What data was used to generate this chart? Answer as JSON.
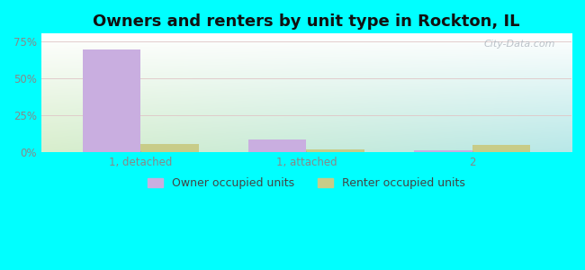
{
  "title": "Owners and renters by unit type in Rockton, IL",
  "categories": [
    "1, detached",
    "1, attached",
    "2"
  ],
  "owner_values": [
    69.0,
    8.5,
    1.0
  ],
  "renter_values": [
    5.5,
    1.5,
    4.5
  ],
  "owner_color": "#c9aee0",
  "renter_color": "#c8cc88",
  "ylim": [
    0,
    80
  ],
  "yticks": [
    0,
    25,
    50,
    75
  ],
  "ytick_labels": [
    "0%",
    "25%",
    "50%",
    "75%"
  ],
  "bar_width": 0.35,
  "bg_top": "#ffffff",
  "bg_bottom": "#d8eecc",
  "bg_right": "#b8e8e8",
  "outer_bg": "#00ffff",
  "legend_owner": "Owner occupied units",
  "legend_renter": "Renter occupied units",
  "watermark": "City-Data.com",
  "title_fontsize": 13,
  "label_fontsize": 9,
  "tick_fontsize": 8.5,
  "grid_color": "#e8d8d8",
  "tick_color": "#888888"
}
